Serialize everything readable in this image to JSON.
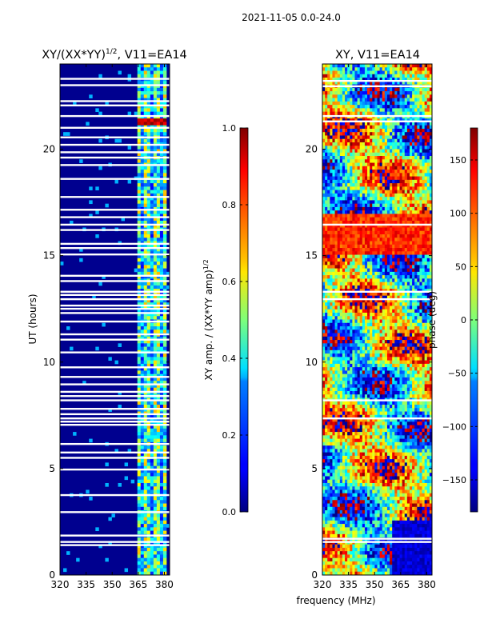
{
  "page_title": "2021-11-05 0.0-24.0",
  "xlabel": "frequency (MHz)",
  "colors": {
    "dark_blue": "#00008f",
    "white_gap": "#ffffff",
    "axis": "#000000"
  },
  "colormap": "jet",
  "chart_data": [
    {
      "type": "heatmap",
      "title": "XY/(XX*YY)1/2, V11=EA14",
      "title_main": "XY/(XX*YY)",
      "title_sup": "1/2",
      "title_tail": ", V11=EA14",
      "xlabel": "",
      "ylabel": "UT (hours)",
      "xlim": [
        320,
        383
      ],
      "ylim": [
        0,
        24
      ],
      "xticks": [
        320,
        335,
        350,
        365,
        380
      ],
      "yticks": [
        0,
        5,
        10,
        15,
        20
      ],
      "active_band_mhz": [
        364,
        381
      ],
      "background_value": 0.05,
      "band_value_range": [
        0.2,
        0.7
      ],
      "hot_rows_hours": [
        21.1,
        21.4
      ],
      "gap_rows_hours": [
        1.4,
        1.55,
        1.85,
        2.95,
        3.75,
        4.95,
        5.5,
        5.75,
        6.15,
        7.05,
        7.2,
        7.35,
        7.55,
        7.8,
        8.2,
        8.4,
        8.6,
        8.95,
        9.3,
        9.75,
        10.45,
        11.05,
        11.3,
        11.9,
        12.3,
        12.5,
        12.65,
        12.95,
        13.15,
        13.3,
        13.8,
        14.05,
        15.05,
        15.35,
        15.55,
        16.2,
        16.45,
        16.8,
        17.15,
        17.75,
        18.6,
        19.25,
        19.6,
        19.85,
        20.2,
        20.55,
        21.0,
        21.55,
        22.05,
        22.25,
        23.0,
        23.3
      ]
    },
    {
      "type": "heatmap",
      "title": "XY, V11=EA14",
      "xlabel": "frequency (MHz)",
      "ylabel": "",
      "xlim": [
        320,
        383
      ],
      "ylim": [
        0,
        24
      ],
      "xticks": [
        320,
        335,
        350,
        365,
        380
      ],
      "yticks": [
        0,
        5,
        10,
        15,
        20
      ],
      "value_range": [
        -180,
        180
      ],
      "gap_rows_hours": [
        1.55,
        1.7,
        7.35,
        8.2,
        12.95,
        13.3,
        16.45,
        21.3,
        21.55,
        22.95,
        23.2
      ]
    }
  ],
  "colorbars": [
    {
      "label": "XY amp. / (XX*YY amp)1/2",
      "label_main": "XY amp. / (XX*YY amp)",
      "label_sup": "1/2",
      "range": [
        0.0,
        1.0
      ],
      "ticks": [
        "0.0",
        "0.2",
        "0.4",
        "0.6",
        "0.8",
        "1.0"
      ],
      "tick_values": [
        0.0,
        0.2,
        0.4,
        0.6,
        0.8,
        1.0
      ]
    },
    {
      "label": "phase (deg)",
      "range": [
        -180,
        180
      ],
      "ticks": [
        "−150",
        "−100",
        "−50",
        "0",
        "50",
        "100",
        "150"
      ],
      "tick_values": [
        -150,
        -100,
        -50,
        0,
        50,
        100,
        150
      ]
    }
  ]
}
